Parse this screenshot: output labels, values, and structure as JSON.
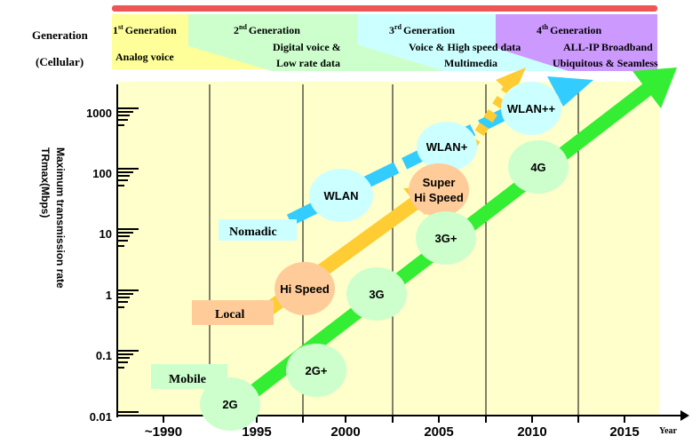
{
  "generation_label": "Generation",
  "cellular_label": "(Cellular)",
  "generations": [
    {
      "ordinal": "1",
      "suffix": "st",
      "word": "Generation",
      "desc": [
        "Analog voice"
      ],
      "color": "#ffff99"
    },
    {
      "ordinal": "2",
      "suffix": "nd",
      "word": "Generation",
      "desc": [
        "Digital voice &",
        "Low rate data"
      ],
      "color": "#ccffcc"
    },
    {
      "ordinal": "3",
      "suffix": "rd",
      "word": "Generation",
      "desc": [
        "Voice & High speed data",
        "Multimedia"
      ],
      "color": "#ccffff"
    },
    {
      "ordinal": "4",
      "suffix": "th",
      "word": "Generation",
      "desc": [
        "ALL-IP Broadband",
        "Ubiquitous & Seamless"
      ],
      "color": "#cc99ff"
    }
  ],
  "y_axis": {
    "label_line1": "Maximum transmission rate",
    "label_line2": "TRmax(Mbps)",
    "ticks": [
      "1000",
      "100",
      "10",
      "1",
      "0.1",
      "0.01"
    ]
  },
  "x_axis": {
    "label": "Year",
    "ticks": [
      "~1990",
      "1995",
      "2000",
      "2005",
      "2010",
      "2015"
    ]
  },
  "categories": {
    "nomadic": "Nomadic",
    "local": "Local",
    "mobile": "Mobile"
  },
  "nodes": {
    "wlan": "WLAN",
    "wlan_plus": "WLAN+",
    "wlan_pp": "WLAN++",
    "hi_speed": "Hi Speed",
    "super_1": "Super",
    "super_2": "Hi Speed",
    "g2": "2G",
    "g2plus": "2G+",
    "g3": "3G",
    "g3plus": "3G+",
    "g4": "4G"
  },
  "colors": {
    "plot_bg": "#ffffcc",
    "red_bar": "#ee5555",
    "nomadic_arrow": "#33ccff",
    "local_arrow": "#ffcc33",
    "mobile_arrow": "#33ee33",
    "node_cyan": "#ccffff",
    "node_orange": "#ffcc99",
    "node_green": "#ccffcc"
  }
}
